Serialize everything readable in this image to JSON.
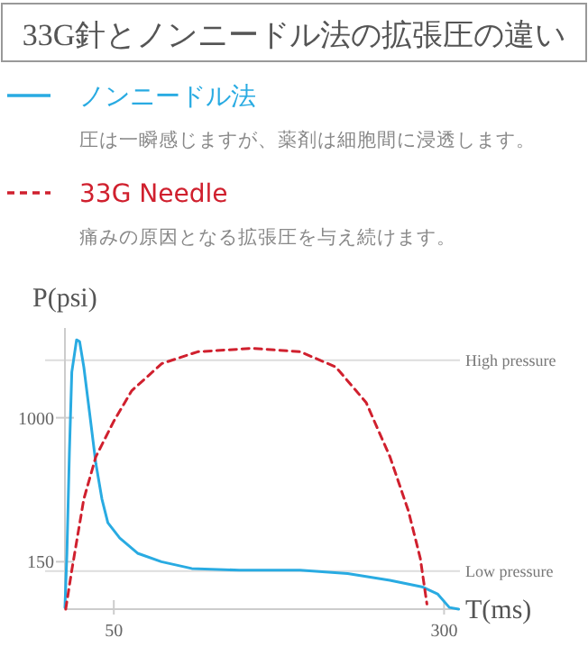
{
  "chart_data": {
    "type": "line",
    "title": "33G針とノンニードル法の拡張圧の違い",
    "xlabel": "T(ms)",
    "ylabel": "P(psi)",
    "legend": "top",
    "grid": false,
    "xlim": [
      13,
      312
    ],
    "ylim": [
      -130,
      1530
    ],
    "xticks": [
      50,
      300
    ],
    "yticks": [
      150,
      1000
    ],
    "series": [
      {
        "name": "ノンニードル法",
        "color": "#29abe2",
        "line_style": "solid",
        "x": [
          13,
          14.5,
          16.4,
          18.2,
          21.8,
          24.1,
          27.3,
          31.8,
          36.4,
          41,
          45.5,
          54.5,
          68,
          86,
          109,
          145,
          191,
          227,
          259,
          284,
          295,
          304,
          311
        ],
        "values": [
          -120,
          200,
          800,
          1270,
          1460,
          1450,
          1300,
          1020,
          730,
          520,
          380,
          290,
          200,
          150,
          110,
          100,
          100,
          80,
          40,
          0,
          -40,
          -120,
          -130
        ]
      },
      {
        "name": "33G Needle",
        "color": "#d0202e",
        "line_style": "dashed",
        "x": [
          13.6,
          18.2,
          27.3,
          36.4,
          50,
          63.6,
          86.4,
          113.6,
          154.5,
          191,
          218,
          241,
          259,
          273,
          282,
          287
        ],
        "values": [
          -130,
          100,
          520,
          770,
          980,
          1160,
          1320,
          1390,
          1410,
          1390,
          1300,
          1090,
          770,
          450,
          170,
          -100
        ]
      }
    ],
    "ref_lines": [
      {
        "axis": "y",
        "value": 1340,
        "label": "High pressure"
      },
      {
        "axis": "y",
        "value": 95,
        "label": "Low pressure"
      }
    ],
    "annotations": [
      "圧は一瞬感じますが、薬剤は細胞間に浸透します。",
      "痛みの原因となる拡張圧を与え続けます。"
    ]
  }
}
